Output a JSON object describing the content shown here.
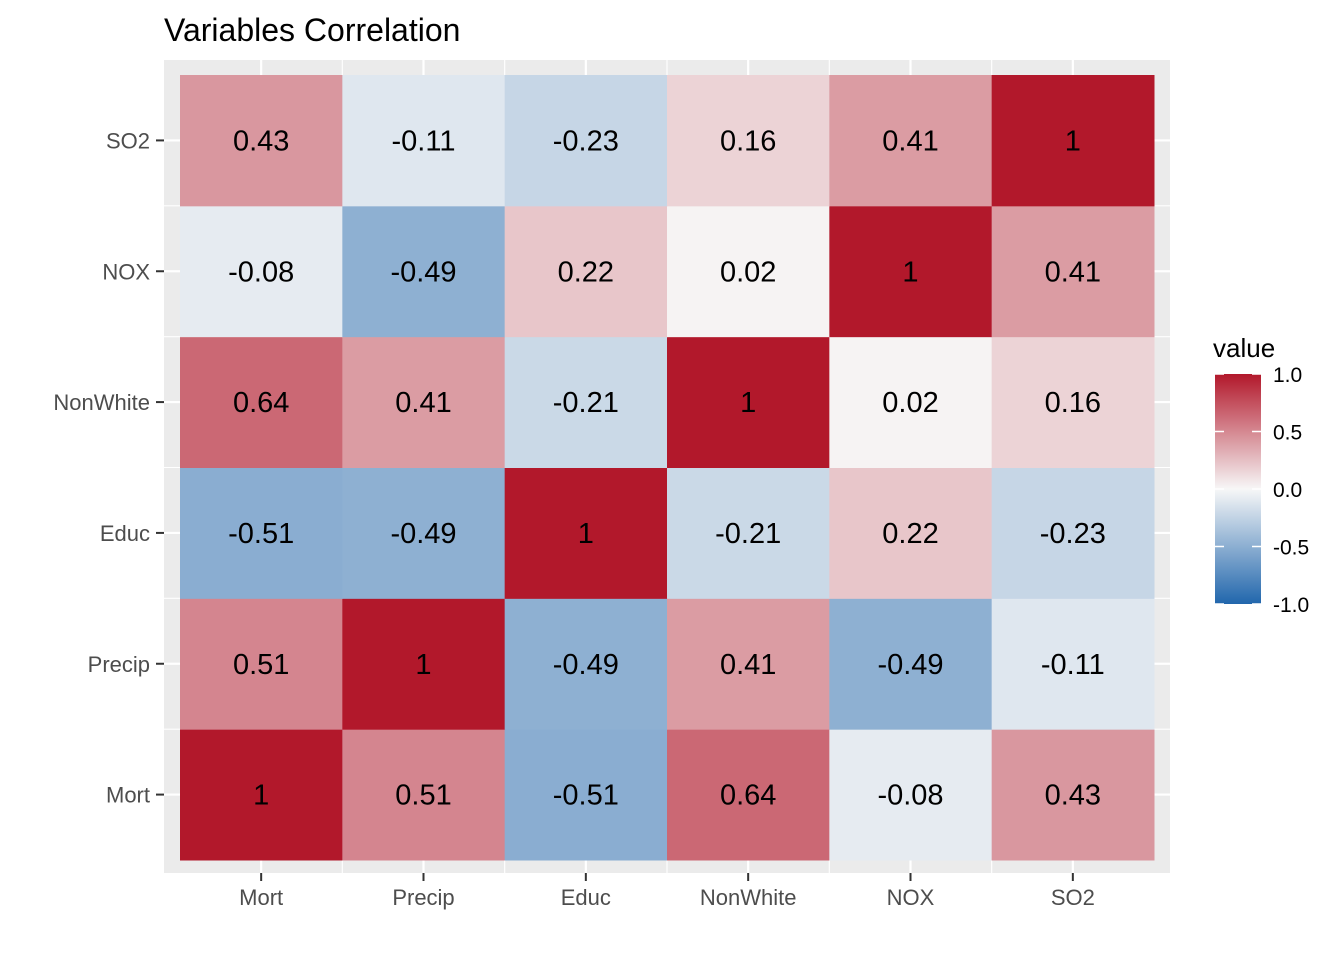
{
  "chart_data": {
    "type": "heatmap",
    "title": "Variables Correlation",
    "xlabel": "",
    "ylabel": "",
    "x_categories": [
      "Mort",
      "Precip",
      "Educ",
      "NonWhite",
      "NOX",
      "SO2"
    ],
    "y_categories": [
      "Mort",
      "Precip",
      "Educ",
      "NonWhite",
      "NOX",
      "SO2"
    ],
    "matrix": [
      [
        1,
        0.51,
        -0.51,
        0.64,
        -0.08,
        0.43
      ],
      [
        0.51,
        1,
        -0.49,
        0.41,
        -0.49,
        -0.11
      ],
      [
        -0.51,
        -0.49,
        1,
        -0.21,
        0.22,
        -0.23
      ],
      [
        0.64,
        0.41,
        -0.21,
        1,
        0.02,
        0.16
      ],
      [
        -0.08,
        -0.49,
        0.22,
        0.02,
        1,
        0.41
      ],
      [
        0.43,
        -0.11,
        -0.23,
        0.16,
        0.41,
        1
      ]
    ],
    "labels": [
      [
        "1",
        "0.51",
        "-0.51",
        "0.64",
        "-0.08",
        "0.43"
      ],
      [
        "0.51",
        "1",
        "-0.49",
        "0.41",
        "-0.49",
        "-0.11"
      ],
      [
        "-0.51",
        "-0.49",
        "1",
        "-0.21",
        "0.22",
        "-0.23"
      ],
      [
        "0.64",
        "0.41",
        "-0.21",
        "1",
        "0.02",
        "0.16"
      ],
      [
        "-0.08",
        "-0.49",
        "0.22",
        "0.02",
        "1",
        "0.41"
      ],
      [
        "0.43",
        "-0.11",
        "-0.23",
        "0.16",
        "0.41",
        "1"
      ]
    ],
    "legend": {
      "title": "value",
      "placement": "right",
      "range": [
        -1,
        1
      ],
      "ticks": [
        "1.0",
        "0.5",
        "0.0",
        "-0.5",
        "-1.0"
      ],
      "tick_values": [
        1,
        0.5,
        0,
        -0.5,
        -1
      ]
    },
    "colors": {
      "low": "#2166ac",
      "mid": "#f7f7f7",
      "high": "#b2182b",
      "panel_background": "#ebebeb",
      "grid": "#ffffff"
    },
    "grid": true
  }
}
